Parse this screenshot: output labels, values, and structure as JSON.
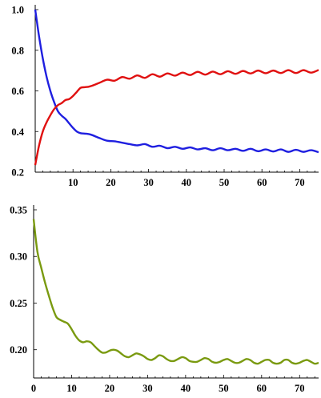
{
  "chart_data": [
    {
      "type": "line",
      "title": "",
      "xlabel": "",
      "ylabel": "",
      "xlim": [
        0,
        75
      ],
      "ylim": [
        0.2,
        1.0
      ],
      "grid": false,
      "x_ticks": [
        10,
        20,
        30,
        40,
        50,
        60,
        70
      ],
      "x_tick_labels": [
        "10",
        "20",
        "30",
        "40",
        "50",
        "60",
        "70"
      ],
      "y_ticks": [
        0.2,
        0.4,
        0.6,
        0.8,
        1.0
      ],
      "y_tick_labels": [
        "0.2",
        "0.4",
        "0.6",
        "0.8",
        "1.0"
      ],
      "series": [
        {
          "color": "#1f1fe0",
          "x": [
            0,
            1,
            2,
            3,
            4,
            5,
            6,
            7,
            8,
            9,
            10,
            11,
            12,
            13,
            14,
            15,
            17,
            19,
            21,
            23,
            25,
            27,
            29,
            31,
            33,
            35,
            37,
            39,
            41,
            43,
            45,
            47,
            49,
            51,
            53,
            55,
            57,
            59,
            61,
            63,
            65,
            67,
            69,
            71,
            73,
            75
          ],
          "values": [
            1.0,
            0.87,
            0.76,
            0.67,
            0.6,
            0.545,
            0.5,
            0.478,
            0.462,
            0.44,
            0.418,
            0.4,
            0.392,
            0.39,
            0.388,
            0.383,
            0.368,
            0.355,
            0.352,
            0.345,
            0.338,
            0.332,
            0.338,
            0.325,
            0.33,
            0.318,
            0.325,
            0.315,
            0.322,
            0.312,
            0.318,
            0.308,
            0.318,
            0.308,
            0.315,
            0.305,
            0.315,
            0.303,
            0.312,
            0.302,
            0.312,
            0.3,
            0.31,
            0.3,
            0.308,
            0.298
          ]
        },
        {
          "color": "#e01010",
          "x": [
            0,
            1,
            2,
            3,
            4,
            5,
            6,
            7,
            8,
            9,
            10,
            11,
            12,
            13,
            14,
            15,
            17,
            19,
            21,
            23,
            25,
            27,
            29,
            31,
            33,
            35,
            37,
            39,
            41,
            43,
            45,
            47,
            49,
            51,
            53,
            55,
            57,
            59,
            61,
            63,
            65,
            67,
            69,
            71,
            73,
            75
          ],
          "values": [
            0.235,
            0.33,
            0.4,
            0.445,
            0.48,
            0.51,
            0.53,
            0.54,
            0.555,
            0.56,
            0.575,
            0.595,
            0.615,
            0.618,
            0.62,
            0.625,
            0.64,
            0.655,
            0.65,
            0.668,
            0.66,
            0.676,
            0.664,
            0.682,
            0.67,
            0.686,
            0.675,
            0.69,
            0.678,
            0.694,
            0.68,
            0.695,
            0.682,
            0.697,
            0.684,
            0.698,
            0.686,
            0.7,
            0.687,
            0.7,
            0.688,
            0.702,
            0.688,
            0.702,
            0.69,
            0.703
          ]
        }
      ]
    },
    {
      "type": "line",
      "title": "",
      "xlabel": "",
      "ylabel": "",
      "xlim": [
        0,
        75
      ],
      "ylim": [
        0.18,
        0.35
      ],
      "grid": false,
      "x_ticks": [
        0,
        10,
        20,
        30,
        40,
        50,
        60,
        70
      ],
      "x_tick_labels": [
        "0",
        "10",
        "20",
        "30",
        "40",
        "50",
        "60",
        "70"
      ],
      "y_ticks": [
        0.2,
        0.25,
        0.3,
        0.35
      ],
      "y_tick_labels": [
        "0.20",
        "0.25",
        "0.30",
        "0.35"
      ],
      "series": [
        {
          "color": "#7a9a10",
          "x": [
            0,
            1,
            2,
            3,
            4,
            5,
            6,
            7,
            8,
            9,
            10,
            11,
            12,
            13,
            14,
            15,
            16,
            17,
            18,
            19,
            20,
            21,
            22,
            23,
            24,
            25,
            26,
            27,
            28,
            29,
            30,
            31,
            32,
            33,
            34,
            35,
            36,
            37,
            38,
            39,
            40,
            41,
            42,
            43,
            44,
            45,
            46,
            47,
            48,
            49,
            50,
            51,
            52,
            53,
            54,
            55,
            56,
            57,
            58,
            59,
            60,
            61,
            62,
            63,
            64,
            65,
            66,
            67,
            68,
            69,
            70,
            71,
            72,
            73,
            74,
            75
          ],
          "values": [
            0.34,
            0.305,
            0.288,
            0.272,
            0.258,
            0.245,
            0.235,
            0.232,
            0.23,
            0.228,
            0.222,
            0.215,
            0.21,
            0.208,
            0.209,
            0.208,
            0.204,
            0.2,
            0.197,
            0.197,
            0.199,
            0.2,
            0.199,
            0.196,
            0.193,
            0.192,
            0.194,
            0.196,
            0.195,
            0.193,
            0.19,
            0.189,
            0.191,
            0.194,
            0.193,
            0.19,
            0.188,
            0.188,
            0.19,
            0.192,
            0.191,
            0.188,
            0.187,
            0.187,
            0.189,
            0.191,
            0.19,
            0.187,
            0.186,
            0.187,
            0.189,
            0.19,
            0.188,
            0.186,
            0.186,
            0.188,
            0.19,
            0.189,
            0.186,
            0.185,
            0.187,
            0.189,
            0.189,
            0.186,
            0.185,
            0.186,
            0.189,
            0.189,
            0.186,
            0.185,
            0.186,
            0.188,
            0.189,
            0.187,
            0.185,
            0.186
          ]
        }
      ]
    }
  ]
}
